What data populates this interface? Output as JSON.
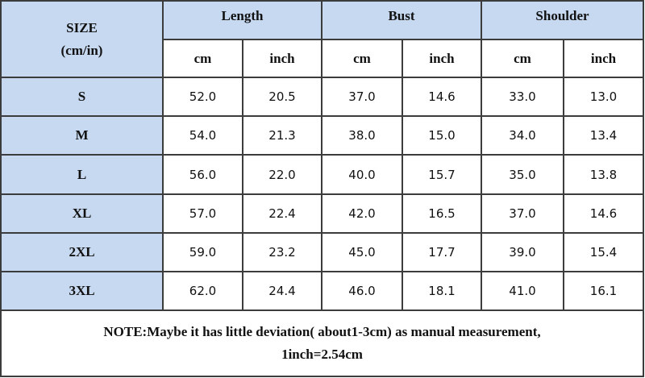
{
  "table": {
    "header": {
      "size": [
        "SIZE",
        "(cm/in)"
      ],
      "groups": [
        "Length",
        "Bust",
        "Shoulder"
      ],
      "units": [
        "cm",
        "inch",
        "cm",
        "inch",
        "cm",
        "inch"
      ]
    },
    "rows": [
      [
        "S",
        "52.0",
        "20.5",
        "37.0",
        "14.6",
        "33.0",
        "13.0"
      ],
      [
        "M",
        "54.0",
        "21.3",
        "38.0",
        "15.0",
        "34.0",
        "13.4"
      ],
      [
        "L",
        "56.0",
        "22.0",
        "40.0",
        "15.7",
        "35.0",
        "13.8"
      ],
      [
        "XL",
        "57.0",
        "22.4",
        "42.0",
        "16.5",
        "37.0",
        "14.6"
      ],
      [
        "2XL",
        "59.0",
        "23.2",
        "45.0",
        "17.7",
        "39.0",
        "15.4"
      ],
      [
        "3XL",
        "62.0",
        "24.4",
        "46.0",
        "18.1",
        "41.0",
        "16.1"
      ]
    ],
    "note": [
      "NOTE:Maybe it has little deviation( about1-3cm) as manual measurement,",
      "1inch=2.54cm"
    ]
  }
}
